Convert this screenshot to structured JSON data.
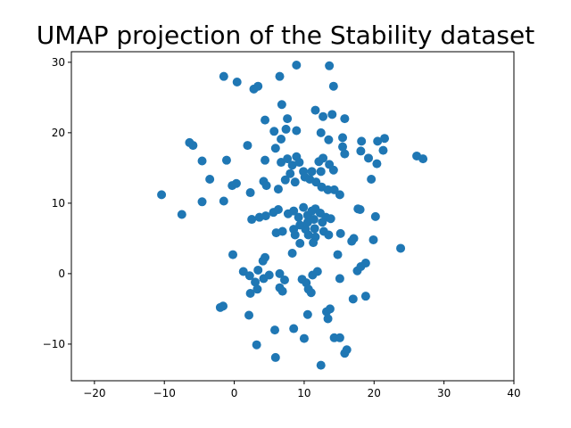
{
  "chart_data": {
    "type": "scatter",
    "title": "UMAP projection of the Stability dataset",
    "xlabel": "",
    "ylabel": "",
    "xlim": [
      -23.3,
      40.0
    ],
    "ylim": [
      -15.2,
      31.5
    ],
    "xticks": [
      -20,
      -10,
      0,
      10,
      20,
      30,
      40
    ],
    "yticks": [
      -10,
      0,
      10,
      20,
      30
    ],
    "xtick_labels": [
      "−20",
      "−10",
      "0",
      "10",
      "20",
      "30",
      "40"
    ],
    "ytick_labels": [
      "−10",
      "0",
      "10",
      "20",
      "30"
    ],
    "grid": false,
    "legend": "none",
    "marker_color": "#1f77b4",
    "series": [
      {
        "points": [
          [
            -1.5,
            28.0
          ],
          [
            0.4,
            27.2
          ],
          [
            2.8,
            26.2
          ],
          [
            3.4,
            26.6
          ],
          [
            6.5,
            28.0
          ],
          [
            8.9,
            29.6
          ],
          [
            13.6,
            29.5
          ],
          [
            14.2,
            26.6
          ],
          [
            4.4,
            21.8
          ],
          [
            6.8,
            24.0
          ],
          [
            7.6,
            22.0
          ],
          [
            5.7,
            20.2
          ],
          [
            6.7,
            19.1
          ],
          [
            7.4,
            20.5
          ],
          [
            8.9,
            20.3
          ],
          [
            11.6,
            23.2
          ],
          [
            12.7,
            22.3
          ],
          [
            14.0,
            22.6
          ],
          [
            15.8,
            22.0
          ],
          [
            12.4,
            20.0
          ],
          [
            13.5,
            19.0
          ],
          [
            15.5,
            19.3
          ],
          [
            18.2,
            18.8
          ],
          [
            15.5,
            18.0
          ],
          [
            15.8,
            17.0
          ],
          [
            18.1,
            17.4
          ],
          [
            19.2,
            16.4
          ],
          [
            20.5,
            18.8
          ],
          [
            21.3,
            17.5
          ],
          [
            21.5,
            19.2
          ],
          [
            20.4,
            15.6
          ],
          [
            -6.4,
            18.6
          ],
          [
            -5.9,
            18.2
          ],
          [
            1.9,
            18.2
          ],
          [
            5.9,
            17.8
          ],
          [
            4.4,
            16.1
          ],
          [
            -4.6,
            16.0
          ],
          [
            -1.1,
            16.1
          ],
          [
            6.7,
            15.8
          ],
          [
            7.6,
            16.3
          ],
          [
            8.3,
            15.4
          ],
          [
            8.9,
            16.6
          ],
          [
            9.3,
            15.8
          ],
          [
            9.9,
            14.5
          ],
          [
            8.0,
            14.2
          ],
          [
            7.3,
            13.3
          ],
          [
            8.7,
            13.0
          ],
          [
            10.1,
            13.7
          ],
          [
            10.8,
            13.4
          ],
          [
            11.1,
            14.5
          ],
          [
            11.7,
            13.0
          ],
          [
            12.5,
            12.3
          ],
          [
            13.4,
            11.9
          ],
          [
            12.4,
            14.5
          ],
          [
            13.6,
            15.5
          ],
          [
            14.2,
            14.7
          ],
          [
            12.1,
            15.9
          ],
          [
            12.7,
            16.4
          ],
          [
            14.3,
            11.9
          ],
          [
            15.1,
            11.2
          ],
          [
            19.6,
            13.4
          ],
          [
            26.1,
            16.7
          ],
          [
            27.0,
            16.3
          ],
          [
            -10.4,
            11.2
          ],
          [
            -7.5,
            8.4
          ],
          [
            -3.5,
            13.4
          ],
          [
            -4.6,
            10.2
          ],
          [
            -1.5,
            10.3
          ],
          [
            -0.3,
            12.5
          ],
          [
            0.3,
            12.8
          ],
          [
            2.3,
            11.5
          ],
          [
            4.2,
            13.1
          ],
          [
            4.6,
            12.5
          ],
          [
            6.3,
            12.0
          ],
          [
            2.5,
            7.7
          ],
          [
            3.6,
            8.0
          ],
          [
            4.5,
            8.2
          ],
          [
            5.6,
            8.7
          ],
          [
            6.3,
            9.1
          ],
          [
            7.7,
            8.5
          ],
          [
            8.5,
            8.9
          ],
          [
            9.2,
            8.0
          ],
          [
            9.9,
            9.4
          ],
          [
            10.5,
            8.3
          ],
          [
            11.1,
            8.9
          ],
          [
            11.6,
            9.2
          ],
          [
            12.3,
            8.6
          ],
          [
            13.1,
            8.0
          ],
          [
            10.5,
            7.3
          ],
          [
            11.4,
            7.7
          ],
          [
            12.6,
            7.3
          ],
          [
            13.8,
            7.8
          ],
          [
            9.4,
            6.9
          ],
          [
            10.2,
            6.3
          ],
          [
            11.5,
            6.4
          ],
          [
            12.8,
            6.0
          ],
          [
            10.6,
            5.5
          ],
          [
            11.6,
            5.2
          ],
          [
            13.5,
            5.5
          ],
          [
            15.2,
            5.7
          ],
          [
            9.4,
            4.3
          ],
          [
            11.3,
            4.4
          ],
          [
            6.0,
            5.8
          ],
          [
            6.9,
            6.0
          ],
          [
            8.5,
            6.3
          ],
          [
            8.7,
            5.5
          ],
          [
            17.7,
            9.2
          ],
          [
            18.0,
            9.1
          ],
          [
            20.2,
            8.1
          ],
          [
            17.1,
            5.0
          ],
          [
            16.8,
            4.6
          ],
          [
            19.9,
            4.8
          ],
          [
            8.3,
            2.9
          ],
          [
            14.8,
            2.7
          ],
          [
            -0.2,
            2.7
          ],
          [
            23.8,
            3.6
          ],
          [
            4.4,
            2.3
          ],
          [
            4.1,
            1.8
          ],
          [
            1.3,
            0.3
          ],
          [
            2.2,
            -0.3
          ],
          [
            3.4,
            0.5
          ],
          [
            4.2,
            -0.7
          ],
          [
            5.0,
            -0.2
          ],
          [
            3.0,
            -1.2
          ],
          [
            6.5,
            0.0
          ],
          [
            7.2,
            -0.9
          ],
          [
            6.5,
            -2.0
          ],
          [
            6.9,
            -2.5
          ],
          [
            9.7,
            -0.8
          ],
          [
            10.3,
            -1.3
          ],
          [
            11.2,
            -0.2
          ],
          [
            11.9,
            0.3
          ],
          [
            10.6,
            -2.2
          ],
          [
            11.0,
            -2.7
          ],
          [
            15.1,
            -0.7
          ],
          [
            17.6,
            0.4
          ],
          [
            18.1,
            1.0
          ],
          [
            18.8,
            1.5
          ],
          [
            2.3,
            -2.8
          ],
          [
            3.3,
            -2.2
          ],
          [
            17.0,
            -3.6
          ],
          [
            18.8,
            -3.2
          ],
          [
            -2.0,
            -4.8
          ],
          [
            -1.6,
            -4.6
          ],
          [
            2.1,
            -5.9
          ],
          [
            10.5,
            -5.8
          ],
          [
            13.2,
            -5.4
          ],
          [
            13.7,
            -5.0
          ],
          [
            13.4,
            -6.4
          ],
          [
            5.8,
            -8.0
          ],
          [
            8.5,
            -7.8
          ],
          [
            3.2,
            -10.1
          ],
          [
            10.0,
            -9.2
          ],
          [
            14.3,
            -9.1
          ],
          [
            15.1,
            -9.1
          ],
          [
            15.8,
            -11.3
          ],
          [
            16.1,
            -10.8
          ],
          [
            5.9,
            -11.9
          ],
          [
            12.4,
            -13.0
          ]
        ]
      }
    ]
  }
}
